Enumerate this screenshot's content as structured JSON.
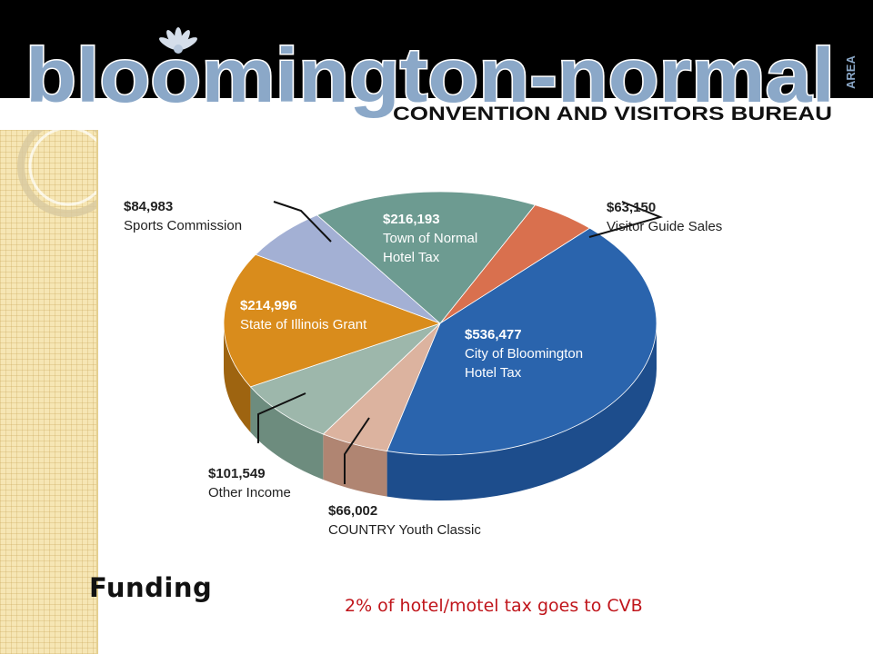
{
  "header": {
    "logo_wordmark": "bloomington-normal",
    "logo_area": "AREA",
    "logo_tagline": "CONVENTION AND VISITORS BUREAU"
  },
  "slide": {
    "title": "Funding",
    "note": "2% of hotel/motel tax goes to CVB"
  },
  "colors": {
    "header_band": "#000000",
    "logo_text": "#8ba8c8",
    "side_strip": "#f6e6b4",
    "note_text": "#c0151b"
  },
  "chart_data": {
    "type": "pie",
    "title": "",
    "slices": [
      {
        "value_label": "$63,150",
        "name": "Visitor Guide Sales",
        "value": 63150,
        "color": "#d9704e",
        "side": "#9e4a2e",
        "label_color": "#222222"
      },
      {
        "value_label": "$536,477",
        "name": "City of Bloomington Hotel Tax",
        "value": 536477,
        "color": "#2a64ad",
        "side": "#1d4d8c",
        "label_color": "#ffffff"
      },
      {
        "value_label": "$66,002",
        "name": "COUNTRY Youth Classic",
        "value": 66002,
        "color": "#dcb39f",
        "side": "#b08572",
        "label_color": "#222222"
      },
      {
        "value_label": "$101,549",
        "name": "Other Income",
        "value": 101549,
        "color": "#9db7ab",
        "side": "#6d8c7e",
        "label_color": "#222222"
      },
      {
        "value_label": "$214,996",
        "name": "State of Illinois Grant",
        "value": 214996,
        "color": "#d98c1c",
        "side": "#9e6410",
        "label_color": "#ffffff"
      },
      {
        "value_label": "$84,983",
        "name": "Sports Commission",
        "value": 84983,
        "color": "#a3b0d4",
        "side": "#7380a8",
        "label_color": "#222222"
      },
      {
        "value_label": "$216,193",
        "name": "Town of Normal Hotel Tax",
        "value": 216193,
        "color": "#6d9b91",
        "side": "#4c7068",
        "label_color": "#ffffff"
      }
    ]
  }
}
